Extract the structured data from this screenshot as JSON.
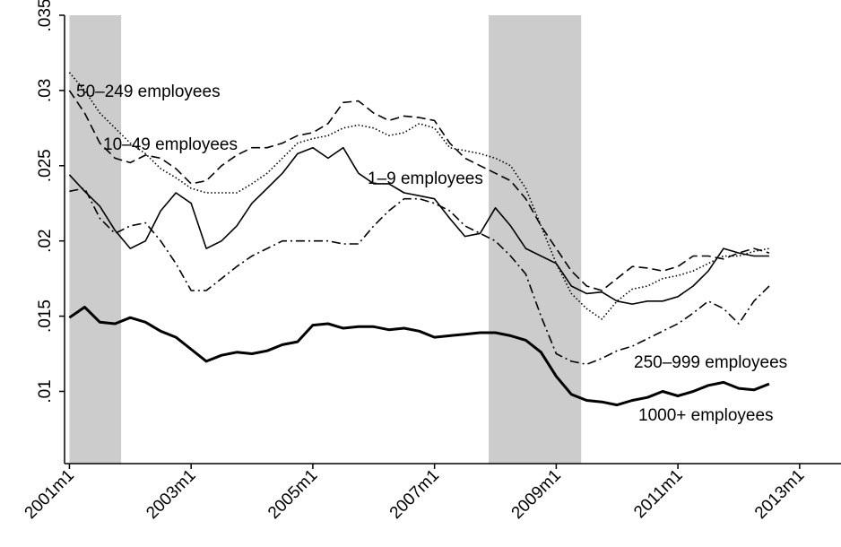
{
  "chart_data": {
    "type": "line",
    "x": [
      2001,
      2001.25,
      2001.5,
      2001.75,
      2002,
      2002.25,
      2002.5,
      2002.75,
      2003,
      2003.25,
      2003.5,
      2003.75,
      2004,
      2004.25,
      2004.5,
      2004.75,
      2005,
      2005.25,
      2005.5,
      2005.75,
      2006,
      2006.25,
      2006.5,
      2006.75,
      2007,
      2007.25,
      2007.5,
      2007.75,
      2008,
      2008.25,
      2008.5,
      2008.75,
      2009,
      2009.25,
      2009.5,
      2009.75,
      2010,
      2010.25,
      2010.5,
      2010.75,
      2011,
      2011.25,
      2011.5,
      2011.75,
      2012,
      2012.25,
      2012.5
    ],
    "series": [
      {
        "name": "50–249 employees",
        "color": "#000000",
        "style": "dot",
        "values": [
          0.0312,
          0.03,
          0.0285,
          0.0275,
          0.0265,
          0.0258,
          0.0248,
          0.0242,
          0.0235,
          0.0232,
          0.0232,
          0.0232,
          0.0238,
          0.0245,
          0.0255,
          0.0265,
          0.0268,
          0.027,
          0.0275,
          0.0277,
          0.0275,
          0.027,
          0.0272,
          0.0278,
          0.0275,
          0.0262,
          0.026,
          0.0258,
          0.0255,
          0.025,
          0.0235,
          0.021,
          0.0185,
          0.0165,
          0.0155,
          0.0148,
          0.016,
          0.0168,
          0.017,
          0.0175,
          0.0177,
          0.018,
          0.0185,
          0.019,
          0.019,
          0.0193,
          0.0195
        ]
      },
      {
        "name": "10–49 employees",
        "color": "#000000",
        "style": "dash",
        "values": [
          0.03,
          0.0285,
          0.0265,
          0.0255,
          0.0252,
          0.0257,
          0.0255,
          0.0248,
          0.0238,
          0.024,
          0.025,
          0.0257,
          0.0262,
          0.0262,
          0.0265,
          0.027,
          0.0272,
          0.0278,
          0.0292,
          0.0293,
          0.0285,
          0.028,
          0.0283,
          0.0282,
          0.028,
          0.0265,
          0.0255,
          0.025,
          0.0245,
          0.024,
          0.0228,
          0.021,
          0.0195,
          0.018,
          0.017,
          0.0167,
          0.0175,
          0.0183,
          0.0182,
          0.018,
          0.0183,
          0.019,
          0.019,
          0.0188,
          0.0192,
          0.0195,
          0.0192
        ]
      },
      {
        "name": "1–9 employees",
        "color": "#000000",
        "style": "solid",
        "values": [
          0.0244,
          0.0233,
          0.0223,
          0.0207,
          0.0195,
          0.02,
          0.022,
          0.0232,
          0.0225,
          0.0195,
          0.02,
          0.021,
          0.0225,
          0.0235,
          0.0245,
          0.0258,
          0.0262,
          0.0255,
          0.0262,
          0.0245,
          0.0238,
          0.0238,
          0.0232,
          0.023,
          0.0228,
          0.0215,
          0.0203,
          0.0205,
          0.0222,
          0.021,
          0.0195,
          0.019,
          0.0185,
          0.017,
          0.0165,
          0.0166,
          0.016,
          0.0158,
          0.016,
          0.016,
          0.0163,
          0.017,
          0.018,
          0.0195,
          0.0192,
          0.019,
          0.019
        ]
      },
      {
        "name": "250–999 employees",
        "color": "#000000",
        "style": "dashdot",
        "values": [
          0.0233,
          0.0235,
          0.0215,
          0.0205,
          0.021,
          0.0212,
          0.02,
          0.0185,
          0.0167,
          0.0167,
          0.0175,
          0.0183,
          0.019,
          0.0195,
          0.02,
          0.02,
          0.02,
          0.02,
          0.0198,
          0.0198,
          0.021,
          0.022,
          0.0228,
          0.0228,
          0.0225,
          0.022,
          0.021,
          0.0205,
          0.02,
          0.019,
          0.0178,
          0.015,
          0.0125,
          0.012,
          0.0118,
          0.0122,
          0.0127,
          0.013,
          0.0135,
          0.014,
          0.0145,
          0.0152,
          0.016,
          0.0155,
          0.0145,
          0.016,
          0.017
        ]
      },
      {
        "name": "1000+ employees",
        "color": "#000000",
        "style": "thick",
        "values": [
          0.0149,
          0.0156,
          0.0146,
          0.0145,
          0.0149,
          0.0146,
          0.014,
          0.0136,
          0.0128,
          0.012,
          0.0124,
          0.0126,
          0.0125,
          0.0127,
          0.0131,
          0.0133,
          0.0144,
          0.0145,
          0.0142,
          0.0143,
          0.0143,
          0.0141,
          0.0142,
          0.014,
          0.0136,
          0.0137,
          0.0138,
          0.0139,
          0.0139,
          0.0137,
          0.0134,
          0.0126,
          0.011,
          0.0098,
          0.0094,
          0.0093,
          0.0091,
          0.0094,
          0.0096,
          0.01,
          0.0097,
          0.01,
          0.0104,
          0.0106,
          0.0102,
          0.0101,
          0.0105
        ]
      }
    ],
    "shaded": [
      [
        2001,
        2001.85
      ],
      [
        2007.89,
        2009.41
      ]
    ],
    "shade_color": "#cccccc",
    "xlim": [
      2000.92,
      2013.68
    ],
    "xticks": [
      {
        "value": 2001,
        "label": "2001m1"
      },
      {
        "value": 2003,
        "label": "2003m1"
      },
      {
        "value": 2005,
        "label": "2005m1"
      },
      {
        "value": 2007,
        "label": "2007m1"
      },
      {
        "value": 2009,
        "label": "2009m1"
      },
      {
        "value": 2011,
        "label": "2011m1"
      },
      {
        "value": 2013,
        "label": "2013m1"
      }
    ],
    "ylim": [
      0.0052,
      0.035
    ],
    "yticks": [
      {
        "value": 0.01,
        "label": ".01"
      },
      {
        "value": 0.015,
        "label": ".015"
      },
      {
        "value": 0.02,
        "label": ".02"
      },
      {
        "value": 0.025,
        "label": ".025"
      },
      {
        "value": 0.03,
        "label": ".03"
      },
      {
        "value": 0.035,
        "label": ".035"
      }
    ]
  }
}
